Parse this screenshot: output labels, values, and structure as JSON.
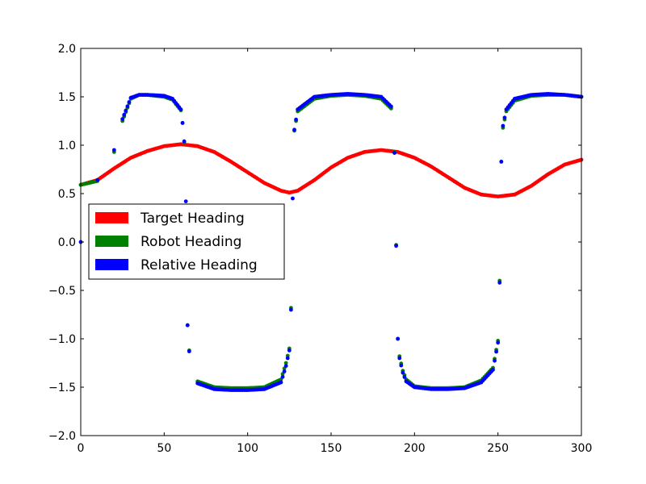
{
  "chart_data": {
    "type": "scatter",
    "title": "",
    "xlabel": "",
    "ylabel": "",
    "xlim": [
      0,
      300
    ],
    "ylim": [
      -2.0,
      2.0
    ],
    "xticks": [
      0,
      50,
      100,
      150,
      200,
      250,
      300
    ],
    "yticks": [
      -2.0,
      -1.5,
      -1.0,
      -0.5,
      0.0,
      0.5,
      1.0,
      1.5,
      2.0
    ],
    "xtick_labels": [
      "0",
      "50",
      "100",
      "150",
      "200",
      "250",
      "300"
    ],
    "ytick_labels": [
      "−2.0",
      "−1.5",
      "−1.0",
      "−0.5",
      "0.0",
      "0.5",
      "1.0",
      "1.5",
      "2.0"
    ],
    "grid": false,
    "legend_position": "center-left",
    "series": [
      {
        "name": "Target Heading",
        "color": "#ff0000",
        "x": [
          0,
          10,
          20,
          30,
          40,
          50,
          60,
          70,
          80,
          90,
          100,
          110,
          120,
          125,
          130,
          140,
          150,
          160,
          170,
          180,
          185,
          190,
          200,
          210,
          220,
          230,
          240,
          250,
          260,
          270,
          280,
          290,
          300
        ],
        "y": [
          0.59,
          0.64,
          0.76,
          0.87,
          0.94,
          0.99,
          1.01,
          0.99,
          0.93,
          0.83,
          0.72,
          0.61,
          0.53,
          0.51,
          0.53,
          0.64,
          0.77,
          0.87,
          0.93,
          0.95,
          0.94,
          0.93,
          0.87,
          0.78,
          0.67,
          0.56,
          0.49,
          0.47,
          0.49,
          0.58,
          0.7,
          0.8,
          0.85
        ]
      },
      {
        "name": "Robot Heading",
        "color": "#008000",
        "x": [
          0,
          10,
          20,
          25,
          30,
          35,
          40,
          50,
          55,
          60,
          61,
          62,
          64,
          65,
          70,
          80,
          90,
          100,
          110,
          120,
          123,
          125,
          126,
          128,
          130,
          140,
          150,
          160,
          170,
          180,
          186,
          188,
          189,
          190,
          191,
          193,
          195,
          200,
          210,
          220,
          230,
          240,
          247,
          250,
          251,
          252,
          253,
          255,
          260,
          270,
          280,
          290,
          300
        ],
        "y": [
          0.59,
          0.63,
          0.93,
          1.25,
          1.48,
          1.52,
          1.52,
          1.5,
          1.47,
          1.36,
          1.23,
          1.03,
          -0.86,
          -1.12,
          -1.44,
          -1.5,
          -1.51,
          -1.51,
          -1.5,
          -1.42,
          -1.25,
          -1.1,
          -0.68,
          1.15,
          1.35,
          1.48,
          1.51,
          1.52,
          1.51,
          1.48,
          1.38,
          0.93,
          -0.03,
          -1.0,
          -1.18,
          -1.33,
          -1.42,
          -1.49,
          -1.51,
          -1.51,
          -1.5,
          -1.43,
          -1.3,
          -1.02,
          -0.4,
          0.83,
          1.18,
          1.35,
          1.46,
          1.51,
          1.52,
          1.52,
          1.5
        ]
      },
      {
        "name": "Relative Heading",
        "color": "#0000ff",
        "x": [
          0,
          10,
          20,
          25,
          30,
          35,
          40,
          50,
          55,
          60,
          61,
          62,
          63,
          64,
          65,
          70,
          80,
          90,
          100,
          110,
          120,
          123,
          125,
          126,
          127,
          128,
          130,
          140,
          150,
          160,
          170,
          180,
          186,
          188,
          189,
          190,
          191,
          193,
          195,
          200,
          210,
          220,
          230,
          240,
          247,
          250,
          251,
          252,
          253,
          255,
          260,
          270,
          280,
          290,
          300
        ],
        "y": [
          0.0,
          0.64,
          0.95,
          1.27,
          1.49,
          1.52,
          1.52,
          1.51,
          1.48,
          1.37,
          1.23,
          1.04,
          0.42,
          -0.86,
          -1.13,
          -1.46,
          -1.52,
          -1.53,
          -1.53,
          -1.52,
          -1.45,
          -1.28,
          -1.12,
          -0.7,
          0.45,
          1.16,
          1.37,
          1.5,
          1.52,
          1.53,
          1.52,
          1.5,
          1.4,
          0.92,
          -0.04,
          -1.0,
          -1.2,
          -1.35,
          -1.44,
          -1.5,
          -1.52,
          -1.52,
          -1.51,
          -1.45,
          -1.32,
          -1.04,
          -0.42,
          0.83,
          1.2,
          1.37,
          1.48,
          1.52,
          1.53,
          1.52,
          1.5
        ]
      }
    ]
  }
}
